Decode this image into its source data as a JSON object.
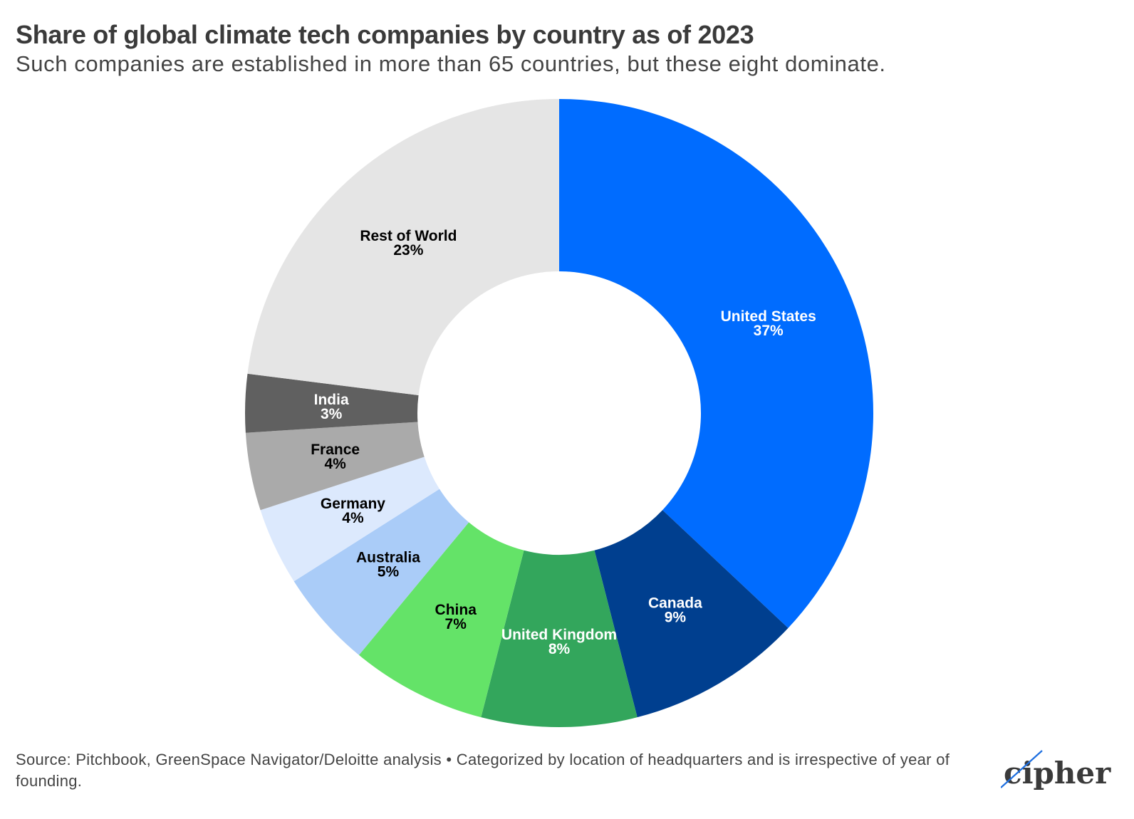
{
  "chart_data": {
    "type": "pie",
    "variant": "donut",
    "title": "Share of global climate tech companies by country as of 2023",
    "subtitle": "Such companies are established in more than 65 countries, but these eight dominate.",
    "unit": "%",
    "slices": [
      {
        "label": "United States",
        "value": 37,
        "display": "37%",
        "color": "#006cff",
        "label_color": "#ffffff"
      },
      {
        "label": "Canada",
        "value": 9,
        "display": "9%",
        "color": "#003f8f",
        "label_color": "#ffffff"
      },
      {
        "label": "United Kingdom",
        "value": 8,
        "display": "8%",
        "color": "#33a65c",
        "label_color": "#ffffff"
      },
      {
        "label": "China",
        "value": 7,
        "display": "7%",
        "color": "#64e368",
        "label_color": "#000000"
      },
      {
        "label": "Australia",
        "value": 5,
        "display": "5%",
        "color": "#aaccf8",
        "label_color": "#000000"
      },
      {
        "label": "Germany",
        "value": 4,
        "display": "4%",
        "color": "#dce9fd",
        "label_color": "#000000"
      },
      {
        "label": "France",
        "value": 4,
        "display": "4%",
        "color": "#aaaaaa",
        "label_color": "#000000"
      },
      {
        "label": "India",
        "value": 3,
        "display": "3%",
        "color": "#606060",
        "label_color": "#ffffff"
      },
      {
        "label": "Rest of World",
        "value": 23,
        "display": "23%",
        "color": "#e5e5e5",
        "label_color": "#000000"
      }
    ]
  },
  "footer": {
    "source": "Source: Pitchbook, GreenSpace Navigator/Deloitte analysis • Categorized by location of headquarters and is irrespective of year of founding.",
    "logo_text": "cipher"
  }
}
